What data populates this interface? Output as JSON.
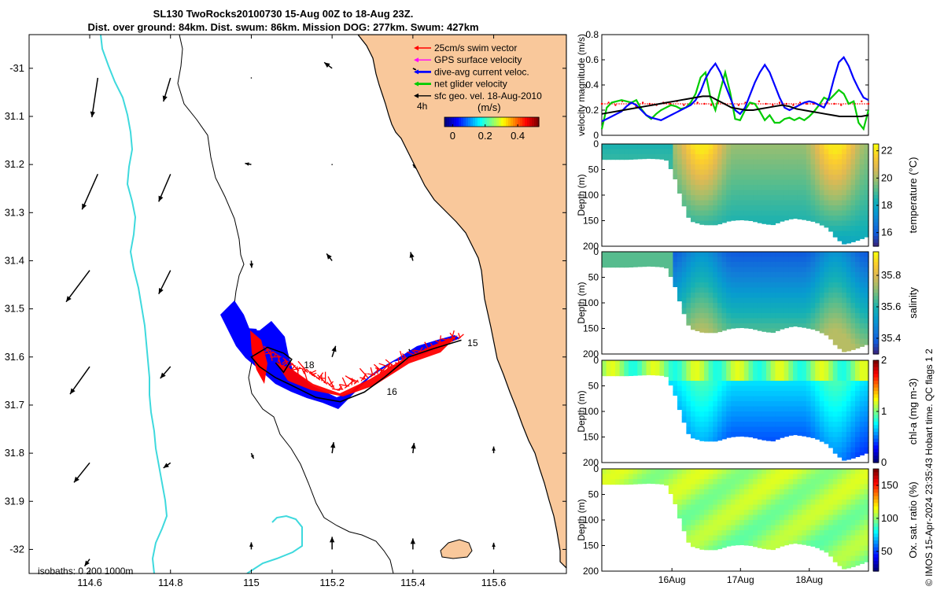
{
  "title": {
    "line1": "SL130 TwoRocks20100730 15-Aug 00Z to 18-Aug 23Z.",
    "line2": "Dist. over ground: 84km. Dist. swum: 86km. Mission DOG: 277km. Swum: 427km"
  },
  "colors": {
    "land": "#F9C89B",
    "isobath": "#3ED9DD",
    "swim": "#FF0000",
    "gps": "#FF00FF",
    "current": "#0000FF",
    "net": "#00CC00",
    "geo": "#000000",
    "temp_warm": "#F2C030",
    "plot_blue": "#2A66D8"
  },
  "map": {
    "xlim": [
      114.45,
      115.78
    ],
    "ylim": [
      -32.05,
      -30.93
    ],
    "xticks": [
      114.6,
      114.8,
      115,
      115.2,
      115.4,
      115.6
    ],
    "xtick_labels": [
      "114.6",
      "114.8",
      "115",
      "115.2",
      "115.4",
      "115.6"
    ],
    "yticks": [
      -31,
      -31.1,
      -31.2,
      -31.3,
      -31.4,
      -31.5,
      -31.6,
      -31.7,
      -31.8,
      -31.9,
      -32
    ],
    "ytick_labels": [
      "-31",
      "31.1",
      "31.2",
      "31.3",
      "31.4",
      "31.5",
      "31.6",
      "31.7",
      "31.8",
      "31.9",
      "-32"
    ],
    "legend": [
      {
        "label": "25cm/s swim vector",
        "color_key": "swim"
      },
      {
        "label": "GPS surface velocity",
        "color_key": "gps"
      },
      {
        "label": "dive-avg current veloc.",
        "color_key": "current"
      },
      {
        "label": "net glider velocity",
        "color_key": "net"
      },
      {
        "label": "sfc geo. vel. 18-Aug-2010",
        "color_key": "geo"
      }
    ],
    "time_label": "4h",
    "colorbar": {
      "unit": "(m/s)",
      "ticks": [
        "0",
        "0.2",
        "0.4"
      ],
      "range": [
        -0.05,
        0.53
      ]
    },
    "isobaths_label": "isobaths: 0   200  1000m",
    "day_labels": [
      {
        "text": "15",
        "lon": 115.535,
        "lat": -31.571
      },
      {
        "text": "16",
        "lon": 115.335,
        "lat": -31.672
      },
      {
        "text": "18",
        "lon": 115.13,
        "lat": -31.617
      }
    ],
    "track": [
      [
        115.52,
        -31.565
      ],
      [
        115.45,
        -31.583
      ],
      [
        115.39,
        -31.6
      ],
      [
        115.33,
        -31.642
      ],
      [
        115.28,
        -31.673
      ],
      [
        115.22,
        -31.693
      ],
      [
        115.16,
        -31.684
      ],
      [
        115.1,
        -31.659
      ],
      [
        115.06,
        -31.643
      ],
      [
        115.02,
        -31.62
      ],
      [
        115.0,
        -31.6
      ],
      [
        115.04,
        -31.58
      ],
      [
        115.08,
        -31.592
      ],
      [
        115.1,
        -31.605
      ],
      [
        115.08,
        -31.632
      ],
      [
        115.06,
        -31.612
      ]
    ],
    "geo_vectors": [
      {
        "lon": 114.62,
        "lat": -31.02,
        "u": -1.5,
        "v": -10
      },
      {
        "lon": 114.8,
        "lat": -31.02,
        "u": -1.8,
        "v": -6
      },
      {
        "lon": 115.0,
        "lat": -31.02,
        "u": 0,
        "v": 0
      },
      {
        "lon": 115.2,
        "lat": -31.0,
        "u": -2,
        "v": 1.5
      },
      {
        "lon": 115.4,
        "lat": -31.0,
        "u": 0.8,
        "v": -0.4
      },
      {
        "lon": 114.62,
        "lat": -31.22,
        "u": -4,
        "v": -9
      },
      {
        "lon": 114.8,
        "lat": -31.22,
        "u": -3,
        "v": -7
      },
      {
        "lon": 115.0,
        "lat": -31.2,
        "u": -1.6,
        "v": 0.3
      },
      {
        "lon": 115.2,
        "lat": -31.2,
        "u": 0,
        "v": 0
      },
      {
        "lon": 115.4,
        "lat": -31.2,
        "u": 0.8,
        "v": -1.0
      },
      {
        "lon": 114.6,
        "lat": -31.42,
        "u": -6,
        "v": -8
      },
      {
        "lon": 114.8,
        "lat": -31.42,
        "u": -3,
        "v": -6
      },
      {
        "lon": 115.0,
        "lat": -31.4,
        "u": 0.1,
        "v": -1.8
      },
      {
        "lon": 115.2,
        "lat": -31.4,
        "u": -1.4,
        "v": 1.8
      },
      {
        "lon": 115.4,
        "lat": -31.4,
        "u": -0.6,
        "v": 2.2
      },
      {
        "lon": 114.6,
        "lat": -31.62,
        "u": -5,
        "v": -7
      },
      {
        "lon": 114.8,
        "lat": -31.62,
        "u": -2.6,
        "v": -3
      },
      {
        "lon": 115.0,
        "lat": -31.6,
        "u": 0,
        "v": 0
      },
      {
        "lon": 115.2,
        "lat": -31.6,
        "u": 0.9,
        "v": 2.8
      },
      {
        "lon": 115.4,
        "lat": -31.6,
        "u": -1,
        "v": 2
      },
      {
        "lon": 114.6,
        "lat": -31.82,
        "u": -4,
        "v": -5
      },
      {
        "lon": 114.8,
        "lat": -31.82,
        "u": -1.8,
        "v": -1.3
      },
      {
        "lon": 115.0,
        "lat": -31.8,
        "u": 0.6,
        "v": -1.4
      },
      {
        "lon": 115.2,
        "lat": -31.8,
        "u": 0.4,
        "v": 2.8
      },
      {
        "lon": 115.4,
        "lat": -31.8,
        "u": 0.3,
        "v": 2.6
      },
      {
        "lon": 115.6,
        "lat": -31.8,
        "u": 0,
        "v": 1.7
      },
      {
        "lon": 114.6,
        "lat": -32.02,
        "u": -1.3,
        "v": -1.8
      },
      {
        "lon": 115.0,
        "lat": -32.0,
        "u": 0,
        "v": 1.8
      },
      {
        "lon": 115.2,
        "lat": -32.0,
        "u": 0,
        "v": 3.2
      },
      {
        "lon": 115.4,
        "lat": -32.0,
        "u": 0,
        "v": 2.8
      },
      {
        "lon": 115.6,
        "lat": -32.0,
        "u": 0,
        "v": 1.7
      }
    ]
  },
  "velocity_panel": {
    "ylabel": "velocity magnitude (m/s)",
    "yticks": [
      0,
      0.2,
      0.4,
      0.6,
      0.8
    ],
    "ytick_labels": [
      "0",
      "0.2",
      "0.4",
      "0.6",
      "0.8"
    ],
    "ylim": [
      0,
      0.8
    ],
    "swim_level": 0.25,
    "blue": [
      0.11,
      0.13,
      0.15,
      0.17,
      0.19,
      0.23,
      0.26,
      0.24,
      0.2,
      0.16,
      0.14,
      0.13,
      0.12,
      0.14,
      0.16,
      0.18,
      0.2,
      0.22,
      0.24,
      0.28,
      0.35,
      0.45,
      0.52,
      0.57,
      0.5,
      0.4,
      0.3,
      0.2,
      0.17,
      0.22,
      0.32,
      0.42,
      0.5,
      0.56,
      0.5,
      0.4,
      0.3,
      0.22,
      0.2,
      0.22,
      0.24,
      0.26,
      0.27,
      0.26,
      0.24,
      0.22,
      0.3,
      0.45,
      0.58,
      0.62,
      0.55,
      0.45,
      0.37,
      0.3,
      0.28
    ],
    "green": [
      0.05,
      0.22,
      0.26,
      0.27,
      0.28,
      0.27,
      0.26,
      0.28,
      0.21,
      0.16,
      0.13,
      0.17,
      0.2,
      0.22,
      0.24,
      0.23,
      0.21,
      0.22,
      0.26,
      0.33,
      0.46,
      0.5,
      0.3,
      0.2,
      0.36,
      0.5,
      0.34,
      0.13,
      0.12,
      0.2,
      0.26,
      0.25,
      0.19,
      0.12,
      0.16,
      0.1,
      0.1,
      0.13,
      0.14,
      0.12,
      0.14,
      0.12,
      0.15,
      0.19,
      0.24,
      0.3,
      0.28,
      0.32,
      0.36,
      0.33,
      0.25,
      0.27,
      0.1,
      0.05,
      0.2
    ],
    "black": [
      0.17,
      0.18,
      0.19,
      0.2,
      0.21,
      0.22,
      0.23,
      0.24,
      0.25,
      0.26,
      0.27,
      0.28,
      0.29,
      0.3,
      0.31,
      0.31,
      0.28,
      0.25,
      0.22,
      0.21,
      0.2,
      0.2,
      0.21,
      0.22,
      0.23,
      0.24,
      0.23,
      0.21,
      0.2,
      0.19,
      0.18,
      0.17,
      0.16,
      0.15,
      0.15,
      0.15,
      0.15,
      0.16
    ],
    "red_dots": [
      0.25,
      0.26,
      0.24,
      0.27,
      0.25,
      0.23,
      0.26,
      0.25,
      0.24,
      0.26,
      0.25,
      0.27,
      0.24,
      0.25,
      0.26,
      0.25,
      0.24,
      0.26,
      0.25,
      0.25,
      0.24,
      0.26,
      0.25,
      0.27,
      0.25,
      0.24,
      0.26,
      0.25,
      0.24,
      0.26,
      0.25,
      0.25,
      0.24,
      0.26,
      0.25,
      0.24,
      0.26,
      0.25,
      0.27,
      0.25
    ]
  },
  "sections": [
    {
      "ylabel": "Depth (m)",
      "cblabel": "temperature (°C)",
      "cbticks": [
        "22",
        "20",
        "18",
        "16"
      ],
      "cbrange": [
        15,
        22.5
      ],
      "cbtick_values": [
        22,
        20,
        18,
        16
      ],
      "palette": "parula",
      "yticks": [
        "0",
        "50",
        "100",
        "150",
        "200"
      ]
    },
    {
      "ylabel": "Depth (m)",
      "cblabel": "salinity",
      "cbticks": [
        "35.8",
        "35.6",
        "35.4"
      ],
      "cbrange": [
        35.3,
        35.95
      ],
      "cbtick_values": [
        35.8,
        35.6,
        35.4
      ],
      "palette": "parula",
      "yticks": [
        "0",
        "50",
        "100",
        "150",
        "200"
      ]
    },
    {
      "ylabel": "Depth (m)",
      "cblabel": "chl-a (mg m-3)",
      "cbticks": [
        "2",
        "1",
        "0"
      ],
      "cbrange": [
        0,
        2
      ],
      "cbtick_values": [
        2,
        1,
        0
      ],
      "palette": "jet",
      "yticks": [
        "0",
        "50",
        "100",
        "150",
        "200"
      ]
    },
    {
      "ylabel": "Depth (m)",
      "cblabel": "Ox. sat. ratio (%)",
      "cbticks": [
        "150",
        "100",
        "50"
      ],
      "cbrange": [
        20,
        175
      ],
      "cbtick_values": [
        150,
        100,
        50
      ],
      "palette": "jet",
      "yticks": [
        "0",
        "50",
        "100",
        "150",
        "200"
      ]
    }
  ],
  "time_axis": {
    "labels": [
      "16Aug",
      "17Aug",
      "18Aug"
    ],
    "day_fraction": [
      0.263,
      0.52,
      0.778
    ]
  },
  "bottom_profile": [
    [
      0,
      30
    ],
    [
      0.1,
      30
    ],
    [
      0.18,
      28
    ],
    [
      0.24,
      30
    ],
    [
      0.27,
      60
    ],
    [
      0.3,
      110
    ],
    [
      0.33,
      150
    ],
    [
      0.38,
      158
    ],
    [
      0.43,
      158
    ],
    [
      0.48,
      150
    ],
    [
      0.52,
      148
    ],
    [
      0.56,
      150
    ],
    [
      0.6,
      155
    ],
    [
      0.64,
      158
    ],
    [
      0.68,
      150
    ],
    [
      0.72,
      145
    ],
    [
      0.76,
      148
    ],
    [
      0.8,
      152
    ],
    [
      0.85,
      165
    ],
    [
      0.88,
      185
    ],
    [
      0.91,
      196
    ],
    [
      0.95,
      190
    ],
    [
      1.0,
      180
    ]
  ],
  "copyright": "© IMOS 15-Apr-2024 23:35:43 Hobart time. QC flags 1  2"
}
